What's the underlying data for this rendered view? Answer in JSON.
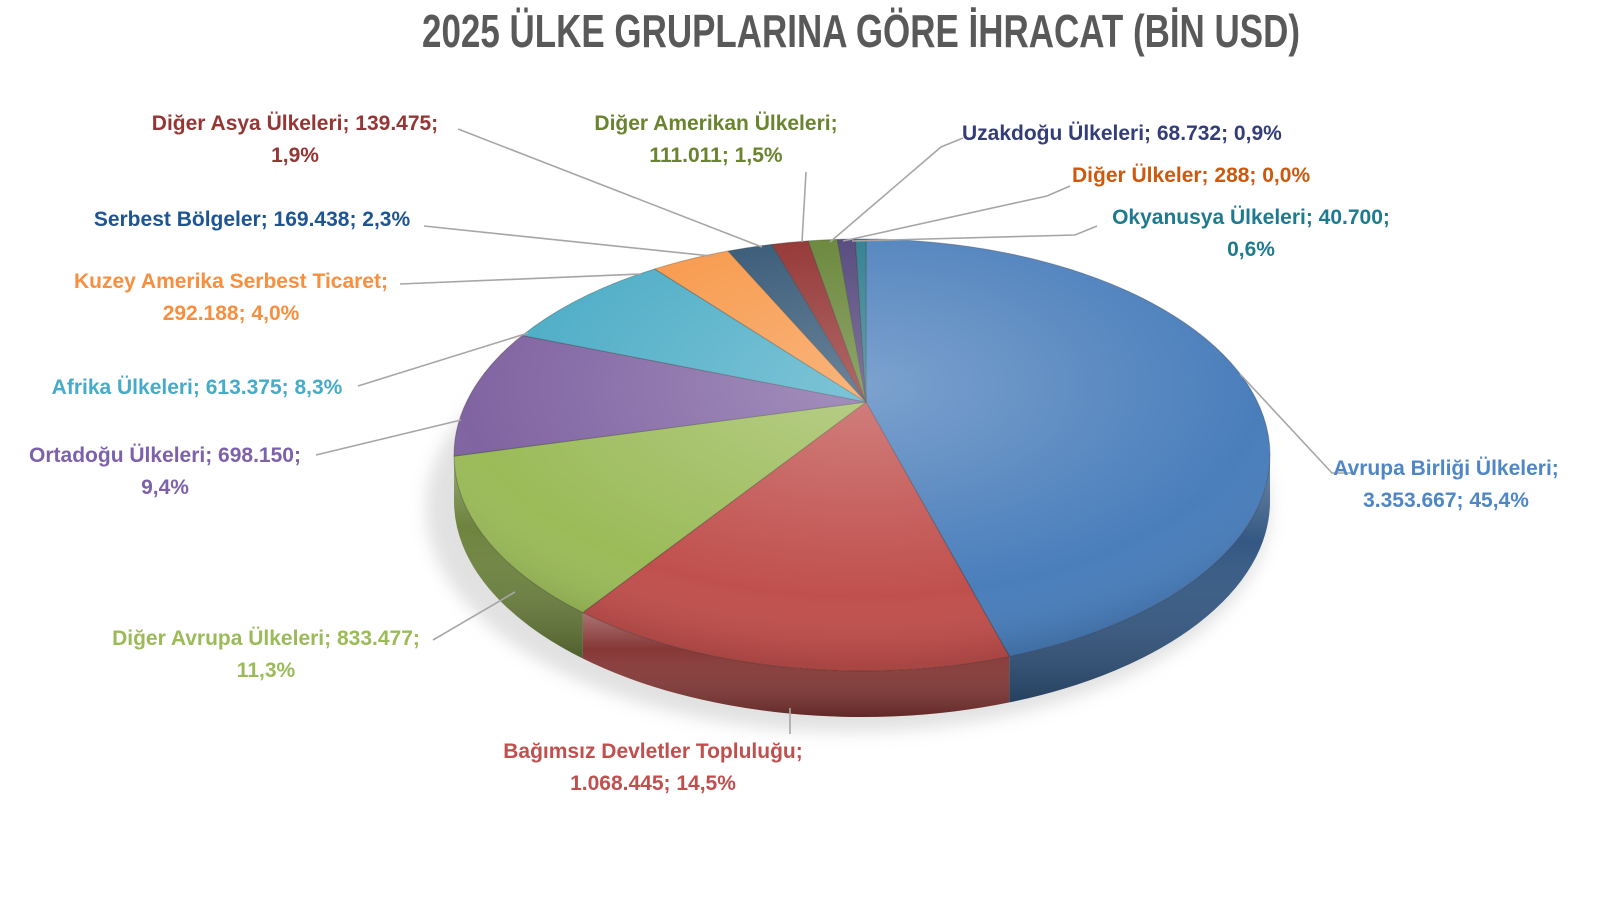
{
  "title": "2025 ÜLKE GRUPLARINA GÖRE İHRACAT (BİN USD)",
  "title_color": "#595959",
  "background_color": "#ffffff",
  "leader_line_color": "#a6a6a6",
  "chart_data": {
    "type": "pie",
    "style": "3d-perspective",
    "title": "2025 ÜLKE GRUPLARINA GÖRE İHRACAT (BİN USD)",
    "unit": "BİN USD",
    "legend_position": "none",
    "label_format": "name; value; percent",
    "slices": [
      {
        "name": "Avrupa Birliği Ülkeleri",
        "value": 3353667,
        "value_text": "3.353.667",
        "pct": 45.4,
        "pct_text": "45,4%",
        "color": "#4a7ebb",
        "label_color": "#4f86c6",
        "label_line1": "Avrupa Birliği Ülkeleri;",
        "label_line2": "3.353.667; 45,4%"
      },
      {
        "name": "Bağımsız Devletler Topluluğu",
        "value": 1068445,
        "value_text": "1.068.445",
        "pct": 14.5,
        "pct_text": "14,5%",
        "color": "#c0504d",
        "label_color": "#c0504d",
        "label_line1": "Bağımsız Devletler Topluluğu;",
        "label_line2": "1.068.445; 14,5%"
      },
      {
        "name": "Diğer Avrupa Ülkeleri",
        "value": 833477,
        "value_text": "833.477",
        "pct": 11.3,
        "pct_text": "11,3%",
        "color": "#9bbb59",
        "label_color": "#9bbb59",
        "label_line1": "Diğer Avrupa Ülkeleri; 833.477;",
        "label_line2": "11,3%"
      },
      {
        "name": "Ortadoğu Ülkeleri",
        "value": 698150,
        "value_text": "698.150",
        "pct": 9.4,
        "pct_text": "9,4%",
        "color": "#8064a2",
        "label_color": "#7d61ab",
        "label_line1": "Ortadoğu Ülkeleri; 698.150;",
        "label_line2": "9,4%"
      },
      {
        "name": "Afrika Ülkeleri",
        "value": 613375,
        "value_text": "613.375",
        "pct": 8.3,
        "pct_text": "8,3%",
        "color": "#4bacc6",
        "label_color": "#46abc8",
        "label_line1": "Afrika Ülkeleri; 613.375; 8,3%",
        "label_line2": ""
      },
      {
        "name": "Kuzey Amerika Serbest Ticaret",
        "value": 292188,
        "value_text": "292.188",
        "pct": 4.0,
        "pct_text": "4,0%",
        "color": "#f79646",
        "label_color": "#f78f3e",
        "label_line1": "Kuzey Amerika Serbest Ticaret;",
        "label_line2": "292.188; 4,0%"
      },
      {
        "name": "Serbest Bölgeler",
        "value": 169438,
        "value_text": "169.438",
        "pct": 2.3,
        "pct_text": "2,3%",
        "color": "#2e5271",
        "label_color": "#1f5493",
        "label_line1": "Serbest Bölgeler; 169.438; 2,3%",
        "label_line2": ""
      },
      {
        "name": "Diğer Asya Ülkeleri",
        "value": 139475,
        "value_text": "139.475",
        "pct": 1.9,
        "pct_text": "1,9%",
        "color": "#8e2b2a",
        "label_color": "#943634",
        "label_line1": "Diğer Asya Ülkeleri; 139.475;",
        "label_line2": "1,9%"
      },
      {
        "name": "Diğer Amerikan Ülkeleri",
        "value": 111011,
        "value_text": "111.011",
        "pct": 1.5,
        "pct_text": "1,5%",
        "color": "#61802f",
        "label_color": "#69832f",
        "label_line1": "Diğer Amerikan Ülkeleri;",
        "label_line2": "111.011; 1,5%"
      },
      {
        "name": "Uzakdoğu Ülkeleri",
        "value": 68732,
        "value_text": "68.732",
        "pct": 0.9,
        "pct_text": "0,9%",
        "color": "#4c3e76",
        "label_color": "#333d78",
        "label_line1": "Uzakdoğu Ülkeleri; 68.732; 0,9%",
        "label_line2": ""
      },
      {
        "name": "Diğer Ülkeler",
        "value": 288,
        "value_text": "288",
        "pct": 0.0,
        "pct_text": "0,0%",
        "color": "#c55a11",
        "label_color": "#cb5a0e",
        "label_line1": "Diğer Ülkeler; 288; 0,0%",
        "label_line2": ""
      },
      {
        "name": "Okyanusya Ülkeleri",
        "value": 40700,
        "value_text": "40.700",
        "pct": 0.6,
        "pct_text": "0,6%",
        "color": "#26788a",
        "label_color": "#1e7a8e",
        "label_line1": "Okyanusya Ülkeleri; 40.700;",
        "label_line2": "0,6%"
      }
    ]
  }
}
